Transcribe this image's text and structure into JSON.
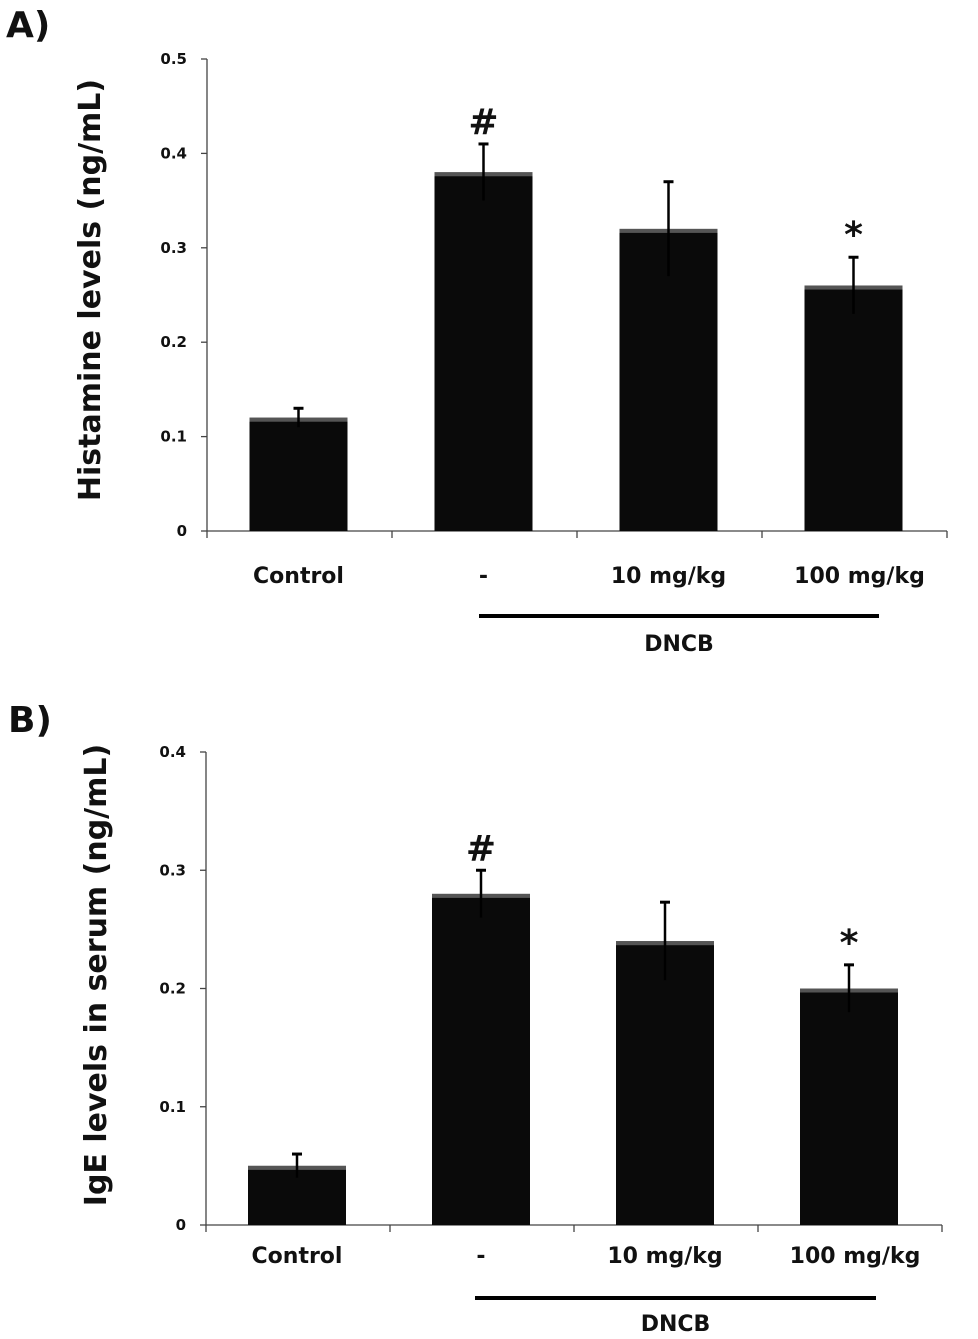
{
  "chart_data": [
    {
      "type": "bar",
      "panel_label": "A)",
      "ylabel": "Histamine levels (ng/mL)",
      "xlabel": "",
      "categories": [
        "Control",
        "-",
        "10 mg/kg",
        "100 mg/kg"
      ],
      "values": [
        0.12,
        0.38,
        0.32,
        0.26
      ],
      "error": [
        0.01,
        0.03,
        0.05,
        0.03
      ],
      "annotations": [
        "",
        "#",
        "",
        "*"
      ],
      "ylim": [
        0,
        0.5
      ],
      "yticks": [
        "0",
        "0.1",
        "0.2",
        "0.3",
        "0.4",
        "0.5"
      ],
      "group_label": "DNCB",
      "bar_color": "#0a0a0a",
      "grid": false
    },
    {
      "type": "bar",
      "panel_label": "B)",
      "ylabel": "IgE levels in serum (ng/mL)",
      "xlabel": "",
      "categories": [
        "Control",
        "-",
        "10 mg/kg",
        "100 mg/kg"
      ],
      "values": [
        0.05,
        0.28,
        0.24,
        0.2
      ],
      "error": [
        0.01,
        0.02,
        0.033,
        0.02
      ],
      "annotations": [
        "",
        "#",
        "",
        "*"
      ],
      "ylim": [
        0,
        0.4
      ],
      "yticks": [
        "0",
        "0.1",
        "0.2",
        "0.3",
        "0.4"
      ],
      "group_label": "DNCB",
      "bar_color": "#0a0a0a",
      "grid": false
    }
  ]
}
